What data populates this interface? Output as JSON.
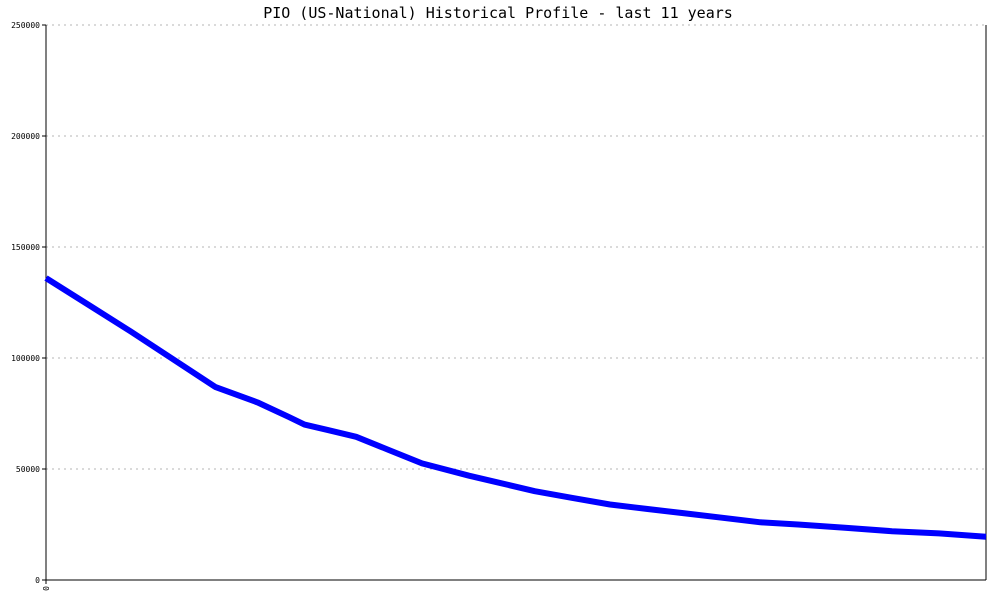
{
  "chart_data": {
    "type": "line",
    "title": "PIO (US-National) Historical Profile - last 11 years",
    "xlabel": "",
    "ylabel": "",
    "x_tick_labels": [
      "0"
    ],
    "ylim": [
      0,
      250000
    ],
    "y_ticks": [
      0,
      50000,
      100000,
      150000,
      200000,
      250000
    ],
    "y_tick_labels": [
      "0",
      "50000",
      "100000",
      "150000",
      "200000",
      "250000"
    ],
    "grid": true,
    "series": [
      {
        "color": "#0000ff",
        "x": [
          0,
          0.045,
          0.09,
          0.135,
          0.18,
          0.225,
          0.258,
          0.275,
          0.3,
          0.33,
          0.365,
          0.4,
          0.45,
          0.48,
          0.52,
          0.56,
          0.6,
          0.64,
          0.68,
          0.72,
          0.76,
          0.8,
          0.85,
          0.9,
          0.95,
          1.0
        ],
        "values": [
          136000,
          124000,
          112000,
          99500,
          87000,
          80000,
          73500,
          70000,
          67500,
          64500,
          58500,
          52500,
          47000,
          44000,
          40000,
          37000,
          34000,
          32000,
          30000,
          28000,
          26000,
          25000,
          23500,
          22000,
          21000,
          19500
        ]
      }
    ]
  }
}
